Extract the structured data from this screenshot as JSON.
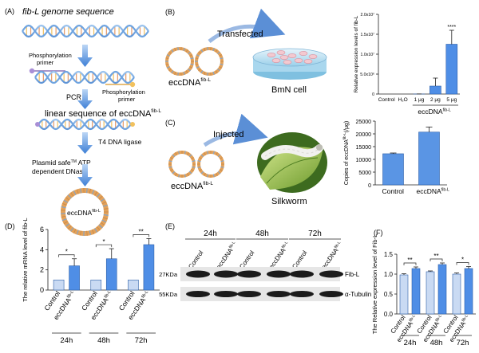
{
  "panel_A": {
    "letter": "(A)",
    "title": "fib-L genome sequence",
    "primer_top": "Phosphorylation\nprimer",
    "primer_bottom": "Phosphorylation\nprimer",
    "step_pcr": "PCR",
    "linear_prefix": "linear sequence of eccDNA",
    "linear_sup": "fib-L",
    "step_ligase": "T4 DNA ligase",
    "step_dnase_1": "Plasmid safe",
    "step_dnase_tm": "TM",
    "step_dnase_2": " ATP",
    "step_dnase_3": "dependent DNase",
    "circle_prefix": "eccDNA",
    "circle_sup": "fib-L"
  },
  "panel_B": {
    "letter": "(B)",
    "arrow_label": "Transfected",
    "circle_prefix": "eccDNA",
    "circle_sup": "fib-L",
    "cell_label": "BmN cell"
  },
  "panel_C": {
    "letter": "(C)",
    "arrow_label": "Injected",
    "circle_prefix": "eccDNA",
    "circle_sup": "fib-L",
    "host_label": "Silkworm"
  },
  "panel_D": {
    "letter": "(D)"
  },
  "panel_E": {
    "letter": "(E)",
    "times": [
      "24h",
      "48h",
      "72h"
    ],
    "lane_labels": [
      "Control",
      "eccDNA",
      "Control",
      "eccDNA",
      "Control",
      "eccDNA"
    ],
    "lane_sup": "fib-L",
    "bands": [
      {
        "size": "27KDa",
        "protein": "Fib-L"
      },
      {
        "size": "55KDa",
        "protein": "α-Tubulin"
      }
    ]
  },
  "panel_F": {
    "letter": "(F)"
  },
  "colors": {
    "light_bar": "#c9daf3",
    "dark_bar": "#4f8ee6",
    "arrow": "#5b8fd6"
  },
  "chart_data": [
    {
      "id": "B",
      "type": "bar",
      "categories": [
        "Control",
        "H₂O",
        "1 μg",
        "2 μg",
        "5 μg"
      ],
      "values": [
        0,
        0,
        10000,
        2000000,
        12500000
      ],
      "errors": [
        0,
        0,
        20000,
        2000000,
        3500000
      ],
      "significance": [
        "",
        "",
        "",
        "",
        "****"
      ],
      "ylabel": "Relative expression levels of fib-L",
      "ylim": [
        0,
        20000000
      ],
      "ytick_labels": [
        "0",
        "5.0x10⁶",
        "1.0x10⁷",
        "1.5x10⁷",
        "2.0x10⁷"
      ],
      "group_label": "eccDNA",
      "group_sup": "fib-L"
    },
    {
      "id": "C",
      "type": "bar",
      "categories": [
        "Control",
        "eccDNA"
      ],
      "category_sup": [
        "",
        "fib-L"
      ],
      "values": [
        12200,
        20700
      ],
      "errors": [
        300,
        2000
      ],
      "ylabel": "Copies of eccDNA",
      "ylabel_sup": "fib-L",
      "ylabel_suffix": "(/μg)",
      "ylim": [
        0,
        25000
      ],
      "ytick_labels": [
        "0",
        "5000",
        "10000",
        "15000",
        "20000",
        "25000"
      ]
    },
    {
      "id": "D",
      "type": "bar",
      "groups": [
        "24h",
        "48h",
        "72h"
      ],
      "series": [
        {
          "name": "Control",
          "values": [
            1.0,
            1.0,
            1.0
          ],
          "errors": [
            0,
            0,
            0
          ]
        },
        {
          "name": "eccDNA",
          "values": [
            2.4,
            3.1,
            4.5
          ],
          "errors": [
            0.7,
            1.0,
            0.6
          ]
        }
      ],
      "series_sup": [
        "",
        "fib-L"
      ],
      "significance": [
        "*",
        "*",
        "**"
      ],
      "ylabel": "The relative mRNA level of fib-L",
      "ylim": [
        0,
        6
      ],
      "ytick_labels": [
        "0",
        "2",
        "4",
        "6"
      ]
    },
    {
      "id": "F",
      "type": "bar",
      "groups": [
        "24h",
        "48h",
        "72h"
      ],
      "series": [
        {
          "name": "Control",
          "values": [
            0.98,
            1.06,
            1.0
          ],
          "errors": [
            0.03,
            0.02,
            0.03
          ]
        },
        {
          "name": "eccDNA",
          "values": [
            1.14,
            1.24,
            1.14
          ],
          "errors": [
            0.04,
            0.04,
            0.05
          ]
        }
      ],
      "series_sup": [
        "",
        "fib-L"
      ],
      "significance": [
        "**",
        "**",
        "*"
      ],
      "ylabel": "The Relative expression level of Fib-L",
      "ylim": [
        0,
        1.5
      ],
      "ytick_labels": [
        "0.0",
        "0.5",
        "1.0",
        "1.5"
      ]
    }
  ]
}
